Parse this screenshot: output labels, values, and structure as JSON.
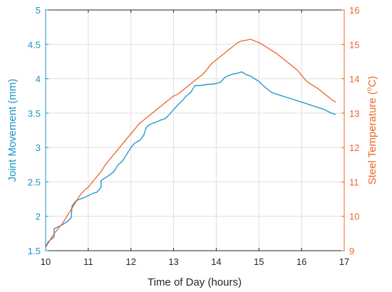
{
  "chart_data": {
    "type": "line",
    "xlabel": "Time of Day (hours)",
    "ylabel_left_parts": [
      "Joint Movement (mm)"
    ],
    "ylabel_right_parts": [
      "Steel Temperature (",
      "o",
      "C)"
    ],
    "xlim": [
      10,
      17
    ],
    "ylim_left": [
      1.5,
      5
    ],
    "ylim_right": [
      9,
      16
    ],
    "x_ticks": [
      10,
      11,
      12,
      13,
      14,
      15,
      16,
      17
    ],
    "y_left_ticks": [
      1.5,
      2,
      2.5,
      3,
      3.5,
      4,
      4.5,
      5
    ],
    "y_right_ticks": [
      9,
      10,
      11,
      12,
      13,
      14,
      15,
      16
    ],
    "grid": true,
    "colors": {
      "left_axis": "#1a93c6",
      "right_axis": "#f0642a",
      "grid": "#dedede",
      "frame": "#262626"
    },
    "series": [
      {
        "axis": "left",
        "color": "#1a93c6",
        "x": [
          10.0,
          10.05,
          10.1,
          10.2,
          10.2,
          10.3,
          10.4,
          10.5,
          10.6,
          10.62,
          10.7,
          10.8,
          10.9,
          11.0,
          11.1,
          11.2,
          11.3,
          11.3,
          11.4,
          11.5,
          11.6,
          11.7,
          11.8,
          11.9,
          12.0,
          12.1,
          12.2,
          12.3,
          12.35,
          12.4,
          12.5,
          12.6,
          12.7,
          12.8,
          12.9,
          13.0,
          13.1,
          13.2,
          13.3,
          13.4,
          13.5,
          13.6,
          13.7,
          13.8,
          13.9,
          14.0,
          14.1,
          14.2,
          14.3,
          14.4,
          14.5,
          14.6,
          14.7,
          14.8,
          14.9,
          15.0,
          15.1,
          15.2,
          15.3,
          15.4,
          15.5,
          15.6,
          15.7,
          15.8,
          15.9,
          16.0,
          16.1,
          16.2,
          16.3,
          16.4,
          16.5,
          16.6,
          16.7,
          16.8
        ],
        "y": [
          1.55,
          1.62,
          1.65,
          1.7,
          1.82,
          1.85,
          1.88,
          1.92,
          1.98,
          2.15,
          2.22,
          2.25,
          2.27,
          2.3,
          2.33,
          2.35,
          2.42,
          2.52,
          2.56,
          2.6,
          2.65,
          2.75,
          2.8,
          2.9,
          3.0,
          3.07,
          3.1,
          3.18,
          3.28,
          3.32,
          3.35,
          3.37,
          3.4,
          3.42,
          3.48,
          3.55,
          3.62,
          3.68,
          3.75,
          3.8,
          3.9,
          3.9,
          3.91,
          3.92,
          3.92,
          3.93,
          3.95,
          4.02,
          4.05,
          4.07,
          4.08,
          4.1,
          4.06,
          4.04,
          4.0,
          3.96,
          3.9,
          3.85,
          3.8,
          3.78,
          3.76,
          3.74,
          3.72,
          3.7,
          3.68,
          3.66,
          3.64,
          3.62,
          3.6,
          3.58,
          3.56,
          3.53,
          3.5,
          3.48
        ]
      },
      {
        "axis": "right",
        "color": "#f0642a",
        "x": [
          10.0,
          10.1,
          10.2,
          10.3,
          10.4,
          10.5,
          10.6,
          10.7,
          10.8,
          10.9,
          11.0,
          11.1,
          11.2,
          11.3,
          11.4,
          11.5,
          11.6,
          11.7,
          11.8,
          11.9,
          12.0,
          12.1,
          12.2,
          12.3,
          12.4,
          12.5,
          12.6,
          12.7,
          12.8,
          12.9,
          13.0,
          13.1,
          13.2,
          13.3,
          13.4,
          13.5,
          13.6,
          13.7,
          13.8,
          13.9,
          14.0,
          14.1,
          14.2,
          14.3,
          14.4,
          14.5,
          14.6,
          14.7,
          14.8,
          14.9,
          15.0,
          15.1,
          15.2,
          15.3,
          15.4,
          15.5,
          15.6,
          15.7,
          15.8,
          15.9,
          16.0,
          16.1,
          16.2,
          16.3,
          16.4,
          16.5,
          16.6,
          16.7,
          16.8
        ],
        "y": [
          9.1,
          9.3,
          9.5,
          9.65,
          9.8,
          10.0,
          10.2,
          10.4,
          10.6,
          10.75,
          10.85,
          11.0,
          11.15,
          11.3,
          11.5,
          11.65,
          11.8,
          11.95,
          12.1,
          12.25,
          12.4,
          12.55,
          12.7,
          12.8,
          12.9,
          13.0,
          13.1,
          13.2,
          13.3,
          13.4,
          13.5,
          13.55,
          13.65,
          13.75,
          13.85,
          13.95,
          14.05,
          14.15,
          14.3,
          14.45,
          14.55,
          14.65,
          14.75,
          14.85,
          14.95,
          15.05,
          15.1,
          15.12,
          15.15,
          15.1,
          15.05,
          14.98,
          14.9,
          14.82,
          14.75,
          14.65,
          14.55,
          14.45,
          14.35,
          14.25,
          14.1,
          13.95,
          13.85,
          13.78,
          13.7,
          13.6,
          13.5,
          13.4,
          13.32
        ]
      }
    ]
  }
}
